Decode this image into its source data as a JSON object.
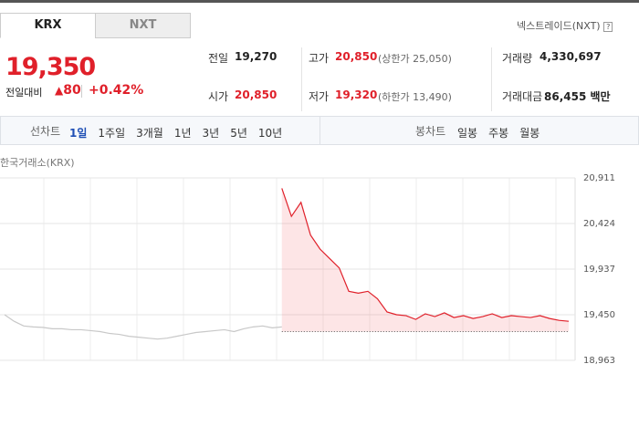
{
  "tabs": [
    "KRX",
    "NXT"
  ],
  "nxt_link": {
    "label": "넥스트레이드(NXT)",
    "icon": "?"
  },
  "price": {
    "current": "19,350",
    "change_label": "전일대비",
    "change": "80",
    "change_pct": "+0.42%"
  },
  "stats": {
    "prev_close": {
      "label": "전일",
      "value": "19,270"
    },
    "high": {
      "label": "고가",
      "value": "20,850",
      "note": "(상한가 25,050)"
    },
    "volume": {
      "label": "거래량",
      "value": "4,330,697"
    },
    "open": {
      "label": "시가",
      "value": "20,850"
    },
    "low": {
      "label": "저가",
      "value": "19,320",
      "note": "(하한가 13,490)"
    },
    "amount": {
      "label": "거래대금",
      "value": "86,455 백만"
    }
  },
  "toolbar": {
    "line_label": "선차트",
    "line_periods": [
      "1일",
      "1주일",
      "3개월",
      "1년",
      "3년",
      "5년",
      "10년"
    ],
    "candle_label": "봉차트",
    "candle_periods": [
      "일봉",
      "주봉",
      "월봉"
    ]
  },
  "chart_data": {
    "type": "line",
    "title": "한국거래소(KRX)",
    "categories": [
      null,
      null,
      null,
      null,
      null,
      null,
      null,
      null,
      null,
      null,
      null,
      null,
      null,
      null,
      null,
      null,
      null,
      null,
      null,
      null,
      null,
      null,
      null,
      null,
      null,
      null,
      null,
      null,
      null,
      null,
      null,
      null,
      null,
      null,
      null,
      null,
      null,
      null,
      null,
      null,
      null,
      null,
      null,
      null,
      null,
      null,
      null,
      null,
      null,
      null,
      null,
      null,
      null,
      null,
      null,
      null,
      null,
      null,
      null,
      null
    ],
    "series": [
      {
        "color": "#c8c8c8",
        "values": [
          19450,
          19380,
          19330,
          19320,
          19315,
          19300,
          19300,
          19290,
          19290,
          19280,
          19270,
          19250,
          19240,
          19220,
          19210,
          19200,
          19190,
          19200,
          19220,
          19240,
          19260,
          19270,
          19280,
          19290,
          19270,
          19300,
          19320,
          19330,
          19310,
          19320,
          null,
          null,
          null,
          null,
          null,
          null,
          null,
          null,
          null,
          null,
          null,
          null,
          null,
          null,
          null,
          null,
          null,
          null,
          null,
          null,
          null,
          null,
          null,
          null,
          null,
          null,
          null,
          null,
          null,
          null
        ]
      },
      {
        "color": "#e0202a",
        "values": [
          null,
          null,
          null,
          null,
          null,
          null,
          null,
          null,
          null,
          null,
          null,
          null,
          null,
          null,
          null,
          null,
          null,
          null,
          null,
          null,
          null,
          null,
          null,
          null,
          null,
          null,
          null,
          null,
          null,
          20800,
          20500,
          20650,
          20300,
          20150,
          20050,
          19950,
          19700,
          19680,
          19700,
          19620,
          19480,
          19450,
          19440,
          19400,
          19460,
          19430,
          19470,
          19420,
          19440,
          19410,
          19430,
          19460,
          19420,
          19440,
          19430,
          19420,
          19440,
          19410,
          19390,
          19380
        ]
      }
    ],
    "prev_close": 19270,
    "ylim": [
      18963,
      20911
    ],
    "yticks": [
      {
        "value": 18963,
        "label": "18,963"
      },
      {
        "value": 19450,
        "label": "19,450"
      },
      {
        "value": 19937,
        "label": "19,937"
      },
      {
        "value": 20424,
        "label": "20,424"
      },
      {
        "value": 20911,
        "label": "20,911"
      }
    ],
    "grid": true
  }
}
